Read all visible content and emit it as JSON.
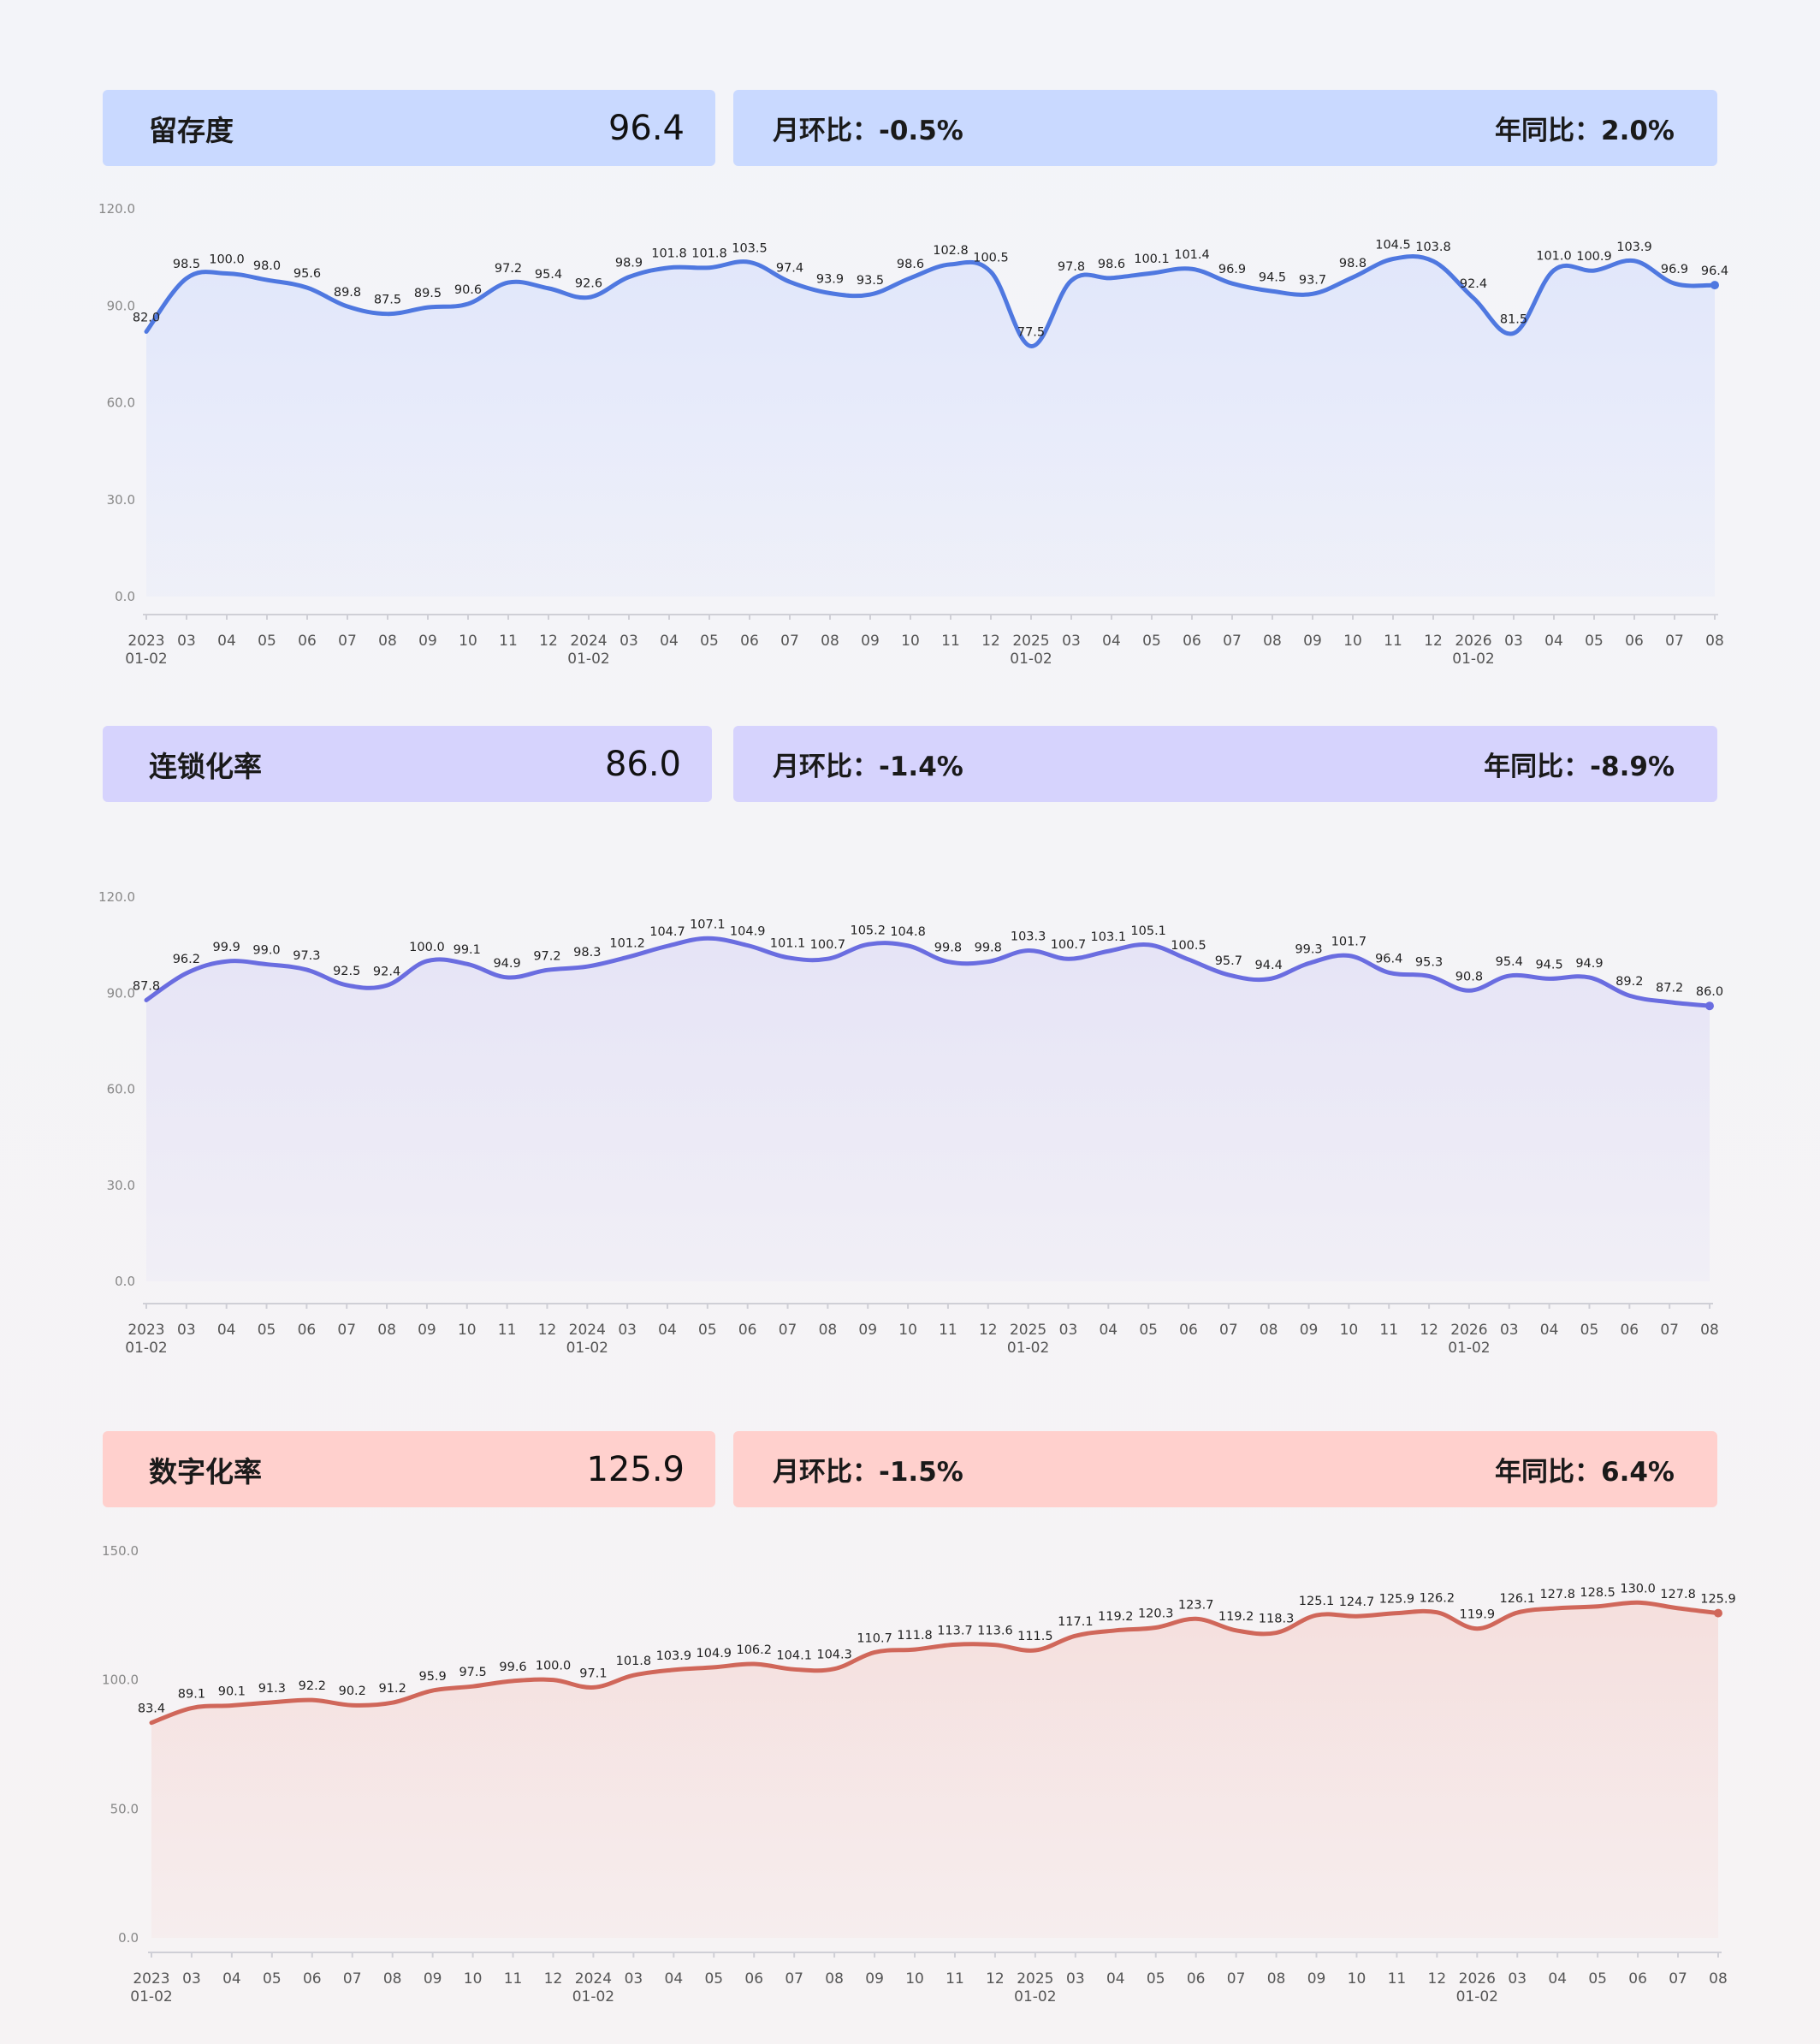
{
  "panels": [
    {
      "title": "留存度",
      "value": "96.4",
      "mom": "月环比：-0.5%",
      "yoy": "年同比：2.0%"
    },
    {
      "title": "连锁化率",
      "value": "86.0",
      "mom": "月环比：-1.4%",
      "yoy": "年同比：-8.9%"
    },
    {
      "title": "数字化率",
      "value": "125.9",
      "mom": "月环比：-1.5%",
      "yoy": "年同比：6.4%"
    }
  ],
  "colors": {
    "panel1_header": "#c9d9ff",
    "panel1_line": "#4f78e0",
    "panel2_header": "#d6d3fd",
    "panel2_line": "#6a6de0",
    "panel3_header": "#ffd0cd",
    "panel3_line": "#d0675a"
  },
  "chart_data": [
    {
      "type": "line",
      "categories": [
        "2023 01-02",
        "03",
        "04",
        "05",
        "06",
        "07",
        "08",
        "09",
        "10",
        "11",
        "12",
        "2024 01-02",
        "03",
        "04",
        "05",
        "06",
        "07",
        "08",
        "09",
        "10",
        "11",
        "12",
        "2025 01-02",
        "03",
        "04",
        "05",
        "06",
        "07",
        "08",
        "09",
        "10",
        "11",
        "12",
        "2026 01-02",
        "03",
        "04",
        "05",
        "06",
        "07",
        "08"
      ],
      "values": [
        82.0,
        98.5,
        100.0,
        98.0,
        95.6,
        89.8,
        87.5,
        89.5,
        90.6,
        97.2,
        95.4,
        92.6,
        98.9,
        101.8,
        101.8,
        103.5,
        97.4,
        93.9,
        93.5,
        98.6,
        102.8,
        100.5,
        77.5,
        97.8,
        98.6,
        100.1,
        101.4,
        96.9,
        94.5,
        93.7,
        98.8,
        104.5,
        103.8,
        92.4,
        81.5,
        101.0,
        100.9,
        103.9,
        96.9,
        96.4
      ],
      "yticks": [
        "0.0",
        "30.0",
        "60.0",
        "90.0",
        "120.0"
      ],
      "ylim": [
        0,
        120
      ]
    },
    {
      "type": "line",
      "categories": [
        "2023 01-02",
        "03",
        "04",
        "05",
        "06",
        "07",
        "08",
        "09",
        "10",
        "11",
        "12",
        "2024 01-02",
        "03",
        "04",
        "05",
        "06",
        "07",
        "08",
        "09",
        "10",
        "11",
        "12",
        "2025 01-02",
        "03",
        "04",
        "05",
        "06",
        "07",
        "08",
        "09",
        "10",
        "11",
        "12",
        "2026 01-02",
        "03",
        "04",
        "05",
        "06",
        "07",
        "08"
      ],
      "values": [
        87.8,
        96.2,
        99.9,
        99.0,
        97.3,
        92.5,
        92.4,
        100.0,
        99.1,
        94.9,
        97.2,
        98.3,
        101.2,
        104.7,
        107.1,
        104.9,
        101.1,
        100.7,
        105.2,
        104.8,
        99.8,
        99.8,
        103.3,
        100.7,
        103.1,
        105.1,
        100.5,
        95.7,
        94.4,
        99.3,
        101.7,
        96.4,
        95.3,
        90.8,
        95.4,
        94.5,
        94.9,
        89.2,
        87.2,
        86.0
      ],
      "yticks": [
        "0.0",
        "30.0",
        "60.0",
        "90.0",
        "120.0"
      ],
      "ylim": [
        0,
        120
      ]
    },
    {
      "type": "line",
      "categories": [
        "2023 01-02",
        "03",
        "04",
        "05",
        "06",
        "07",
        "08",
        "09",
        "10",
        "11",
        "12",
        "2024 01-02",
        "03",
        "04",
        "05",
        "06",
        "07",
        "08",
        "09",
        "10",
        "11",
        "12",
        "2025 01-02",
        "03",
        "04",
        "05",
        "06",
        "07",
        "08",
        "09",
        "10",
        "11",
        "12",
        "2026 01-02",
        "03",
        "04",
        "05",
        "06",
        "07",
        "08"
      ],
      "values": [
        83.4,
        89.1,
        90.1,
        91.3,
        92.2,
        90.2,
        91.2,
        95.9,
        97.5,
        99.6,
        100.0,
        97.1,
        101.8,
        103.9,
        104.9,
        106.2,
        104.1,
        104.3,
        110.7,
        111.8,
        113.7,
        113.6,
        111.5,
        117.1,
        119.2,
        120.3,
        123.7,
        119.2,
        118.3,
        125.1,
        124.7,
        125.9,
        126.2,
        119.9,
        126.1,
        127.8,
        128.5,
        130.0,
        127.8,
        125.9
      ],
      "yticks": [
        "0.0",
        "50.0",
        "100.0",
        "150.0"
      ],
      "ylim": [
        0,
        150
      ]
    }
  ]
}
